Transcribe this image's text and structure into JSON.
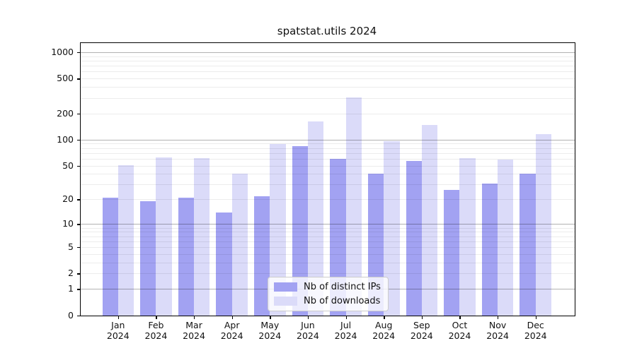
{
  "chart_data": {
    "type": "bar",
    "title": "spatstat.utils 2024",
    "categories": [
      "Jan",
      "Feb",
      "Mar",
      "Apr",
      "May",
      "Jun",
      "Jul",
      "Aug",
      "Sep",
      "Oct",
      "Nov",
      "Dec"
    ],
    "year_label": "2024",
    "series": [
      {
        "name": "Nb of distinct IPs",
        "color": "#a2a2f2",
        "values": [
          21,
          19,
          21,
          14,
          22,
          84,
          60,
          40,
          57,
          26,
          31,
          40
        ]
      },
      {
        "name": "Nb of downloads",
        "color": "#dbdbf9",
        "values": [
          51,
          62,
          61,
          40,
          88,
          160,
          305,
          95,
          148,
          61,
          59,
          115
        ]
      }
    ],
    "y_scale": "log1p",
    "ylim": [
      0,
      1260
    ],
    "y_ticks": [
      0,
      1,
      2,
      5,
      10,
      20,
      50,
      100,
      200,
      500,
      1000
    ],
    "y_major_gridlines": [
      1,
      10,
      100,
      1000
    ],
    "y_minor_gridlines": [
      2,
      3,
      4,
      5,
      6,
      7,
      8,
      9,
      20,
      30,
      40,
      50,
      60,
      70,
      80,
      90,
      200,
      300,
      400,
      500,
      600,
      700,
      800,
      900
    ],
    "grid": "on",
    "legend_position": "lower-center",
    "xlabel": "",
    "ylabel": ""
  }
}
